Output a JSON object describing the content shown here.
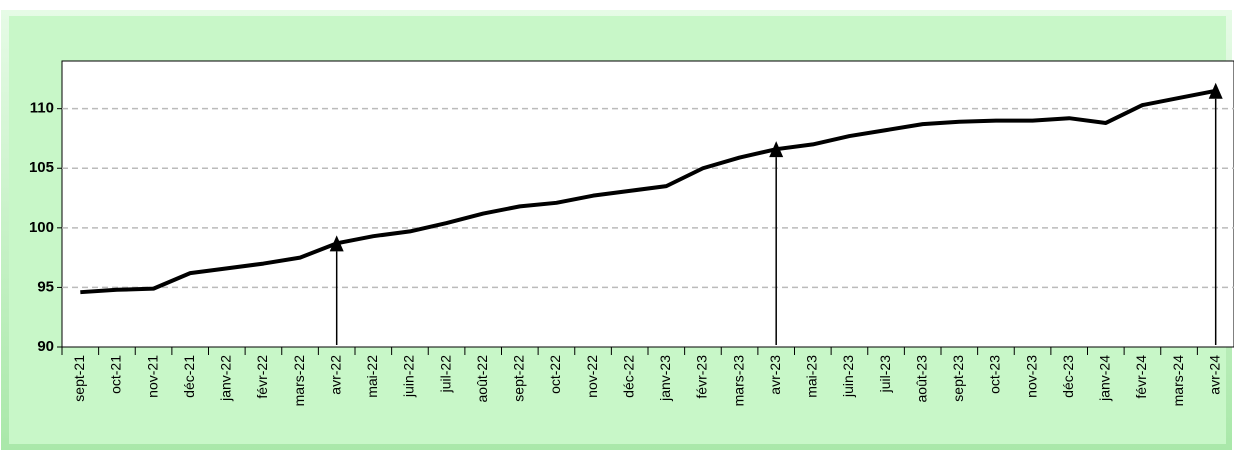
{
  "chart_data": {
    "type": "line",
    "categories": [
      "sept-21",
      "oct-21",
      "nov-21",
      "déc-21",
      "janv-22",
      "févr-22",
      "mars-22",
      "avr-22",
      "mai-22",
      "juin-22",
      "juil-22",
      "août-22",
      "sept-22",
      "oct-22",
      "nov-22",
      "déc-22",
      "janv-23",
      "févr-23",
      "mars-23",
      "avr-23",
      "mai-23",
      "juin-23",
      "juil-23",
      "août-23",
      "sept-23",
      "oct-23",
      "nov-23",
      "déc-23",
      "janv-24",
      "févr-24",
      "mars-24",
      "avr-24"
    ],
    "series": [
      {
        "color": "#000000",
        "values": [
          94.6,
          94.8,
          94.9,
          96.2,
          96.6,
          97.0,
          97.5,
          98.7,
          99.3,
          99.7,
          100.4,
          101.2,
          101.8,
          102.1,
          102.7,
          103.1,
          103.5,
          105.0,
          105.9,
          106.6,
          107.0,
          107.7,
          108.2,
          108.7,
          108.9,
          109.0,
          109.0,
          109.2,
          108.8,
          110.3,
          110.9,
          111.5
        ]
      }
    ],
    "arrows_at": [
      "avr-22",
      "avr-23",
      "avr-24"
    ],
    "ylim": [
      90,
      114
    ],
    "yticks": [
      90,
      95,
      100,
      105,
      110
    ],
    "grid": true
  }
}
